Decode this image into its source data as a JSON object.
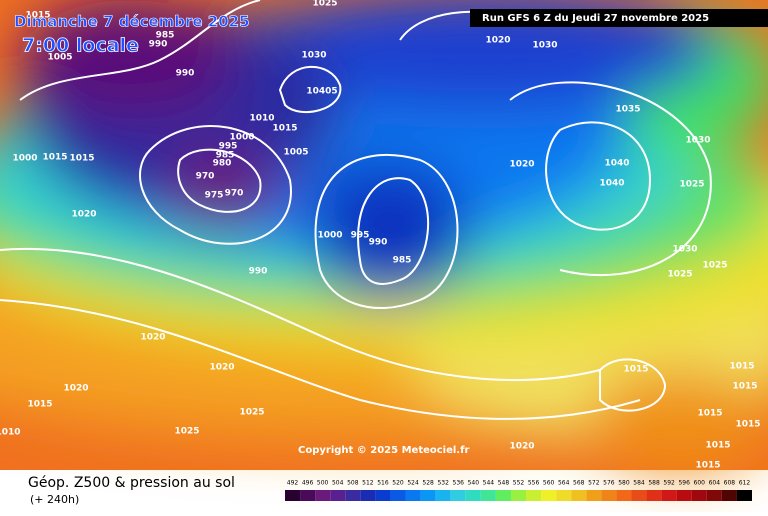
{
  "header": {
    "date": "Dimanche 7 décembre 2025",
    "time": "7:00 locale",
    "run": "Run GFS 6 Z du Jeudi 27 novembre 2025"
  },
  "copyright": "Copyright © 2025 Meteociel.fr",
  "footer": {
    "title": "Géop. Z500 & pression au sol",
    "lead": "(+ 240h)"
  },
  "isobar_labels": [
    "1015",
    "1005",
    "985",
    "990",
    "990",
    "1025",
    "1030",
    "10405",
    "1010",
    "1015",
    "1000",
    "995",
    "985",
    "980",
    "970",
    "975",
    "970",
    "1005",
    "1000",
    "1015",
    "1015",
    "1020",
    "1000",
    "995",
    "990",
    "985",
    "990",
    "1020",
    "1030",
    "1035",
    "1030",
    "1040",
    "1040",
    "1025",
    "1020",
    "1030",
    "1025",
    "1025",
    "1020",
    "1020",
    "1020",
    "1015",
    "1025",
    "1025",
    "1010",
    "1015",
    "1015",
    "1015",
    "1015",
    "1015",
    "1015",
    "1015",
    "1020"
  ],
  "scale": {
    "labels": [
      492,
      496,
      500,
      504,
      508,
      512,
      516,
      520,
      524,
      528,
      532,
      536,
      540,
      544,
      548,
      552,
      556,
      560,
      564,
      568,
      572,
      576,
      580,
      584,
      588,
      592,
      596,
      600,
      604,
      608,
      612
    ],
    "colors": [
      "#2a0030",
      "#4a0a5a",
      "#6a1a7a",
      "#5a2090",
      "#3a2ca0",
      "#1a2cb4",
      "#0a3cd0",
      "#0a5ae6",
      "#0a78f0",
      "#0a96f4",
      "#18b4f0",
      "#30cce0",
      "#30dcc0",
      "#40e696",
      "#60ee60",
      "#98f040",
      "#c8f030",
      "#f0f028",
      "#f0dc28",
      "#f0c020",
      "#f0a018",
      "#f08418",
      "#f06818",
      "#e84c18",
      "#e03018",
      "#d01818",
      "#b80c10",
      "#a00810",
      "#800808",
      "#500404",
      "#000000"
    ]
  }
}
